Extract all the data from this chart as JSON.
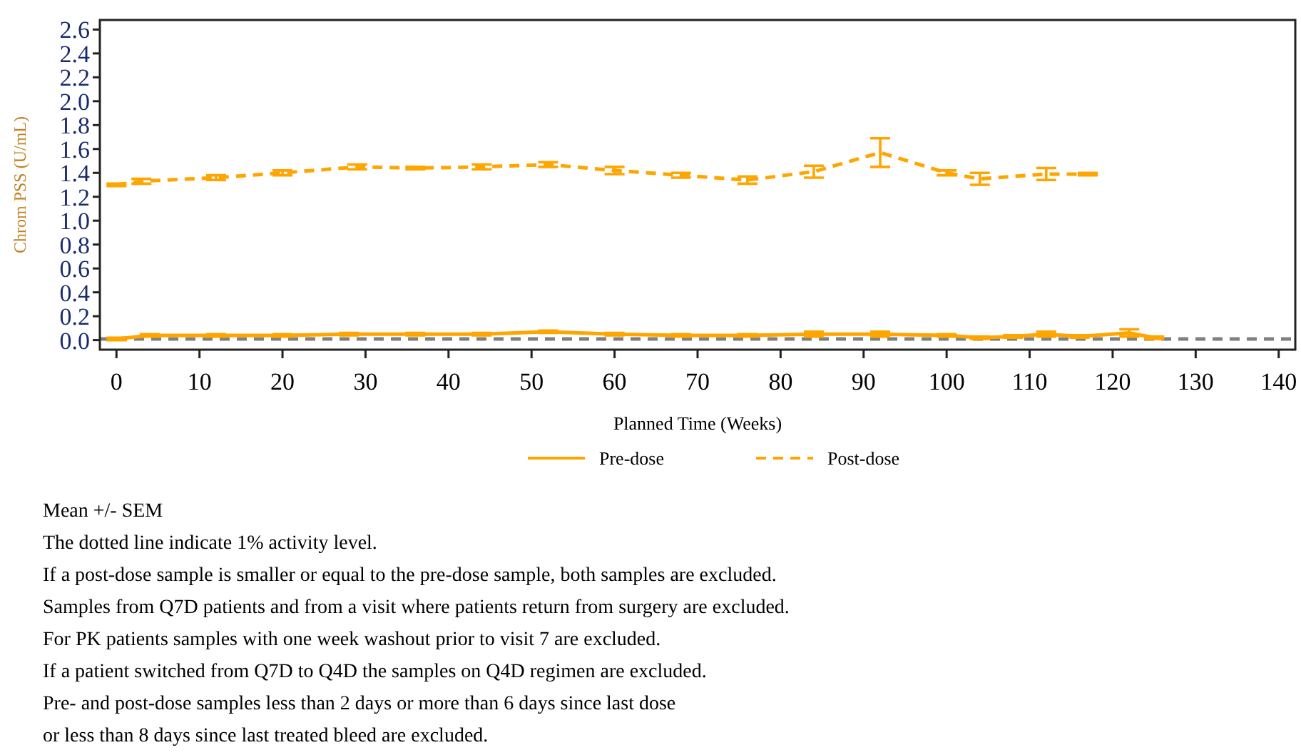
{
  "chart_data": {
    "type": "line",
    "xlabel": "Planned Time (Weeks)",
    "ylabel": "Chrom PSS (U/mL)",
    "xlim": [
      -2,
      142
    ],
    "ylim": [
      -0.08,
      2.68
    ],
    "xticks": [
      0,
      10,
      20,
      30,
      40,
      50,
      60,
      70,
      80,
      90,
      100,
      110,
      120,
      130,
      140
    ],
    "yticks": [
      {
        "value": 0,
        "label": "0.0"
      },
      {
        "value": 0.2,
        "label": "0.2"
      },
      {
        "value": 0.4,
        "label": "0.4"
      },
      {
        "value": 0.6,
        "label": "0.6"
      },
      {
        "value": 0.8,
        "label": "0.8"
      },
      {
        "value": 1,
        "label": "1.0"
      },
      {
        "value": 1.2,
        "label": "1.2"
      },
      {
        "value": 1.4,
        "label": "1.4"
      },
      {
        "value": 1.6,
        "label": "1.6"
      },
      {
        "value": 1.8,
        "label": "1.8"
      },
      {
        "value": 2,
        "label": "2.0"
      },
      {
        "value": 2.2,
        "label": "2.2"
      },
      {
        "value": 2.4,
        "label": "2.4"
      },
      {
        "value": 2.6,
        "label": "2.6"
      }
    ],
    "grid": false,
    "legend": "bottom",
    "marker": "none",
    "series": [
      {
        "name": "Pre-dose",
        "color": "#ffa500",
        "line_style": "solid",
        "x": [
          0,
          4,
          12,
          20,
          28,
          36,
          44,
          52,
          60,
          68,
          76,
          84,
          92,
          100,
          104,
          108,
          112,
          116,
          122,
          125
        ],
        "values": [
          0.01,
          0.04,
          0.04,
          0.04,
          0.05,
          0.05,
          0.05,
          0.07,
          0.05,
          0.04,
          0.04,
          0.05,
          0.05,
          0.04,
          0.02,
          0.03,
          0.05,
          0.03,
          0.06,
          0.02
        ],
        "errors": [
          0.01,
          0.01,
          0.01,
          0.01,
          0.01,
          0.01,
          0.01,
          0.01,
          0.01,
          0.01,
          0.01,
          0.02,
          0.02,
          0.01,
          0.01,
          0.01,
          0.02,
          0.01,
          0.03,
          0.01
        ]
      },
      {
        "name": "Post-dose",
        "color": "#ffa500",
        "line_style": "dashed",
        "x": [
          0,
          3,
          12,
          20,
          29,
          36,
          44,
          52,
          60,
          68,
          76,
          84,
          92,
          100,
          104,
          112,
          117
        ],
        "values": [
          1.3,
          1.33,
          1.36,
          1.4,
          1.45,
          1.44,
          1.45,
          1.47,
          1.42,
          1.38,
          1.34,
          1.41,
          1.57,
          1.4,
          1.35,
          1.39,
          1.39
        ],
        "errors": [
          0.01,
          0.02,
          0.02,
          0.02,
          0.02,
          0.01,
          0.02,
          0.02,
          0.03,
          0.02,
          0.03,
          0.05,
          0.12,
          0.02,
          0.05,
          0.05,
          0.01
        ]
      }
    ],
    "ref_lines": [
      {
        "axis": "y",
        "value": 0.01,
        "color": "#808080",
        "line_style": "dashed"
      }
    ],
    "annotations": [
      "Mean +/- SEM",
      "The dotted line indicate 1% activity level.",
      "If a post-dose sample is smaller or equal to the pre-dose sample, both samples are excluded.",
      "Samples from Q7D patients and from a visit where patients return from surgery are excluded.",
      "For PK patients samples with one week washout prior to visit 7 are excluded.",
      "If a patient switched from Q7D to Q4D the samples on Q4D regimen are excluded.",
      "Pre- and post-dose samples less than 2 days or more than 6 days since last dose",
      "or less than 8 days since last treated bleed are excluded."
    ]
  }
}
